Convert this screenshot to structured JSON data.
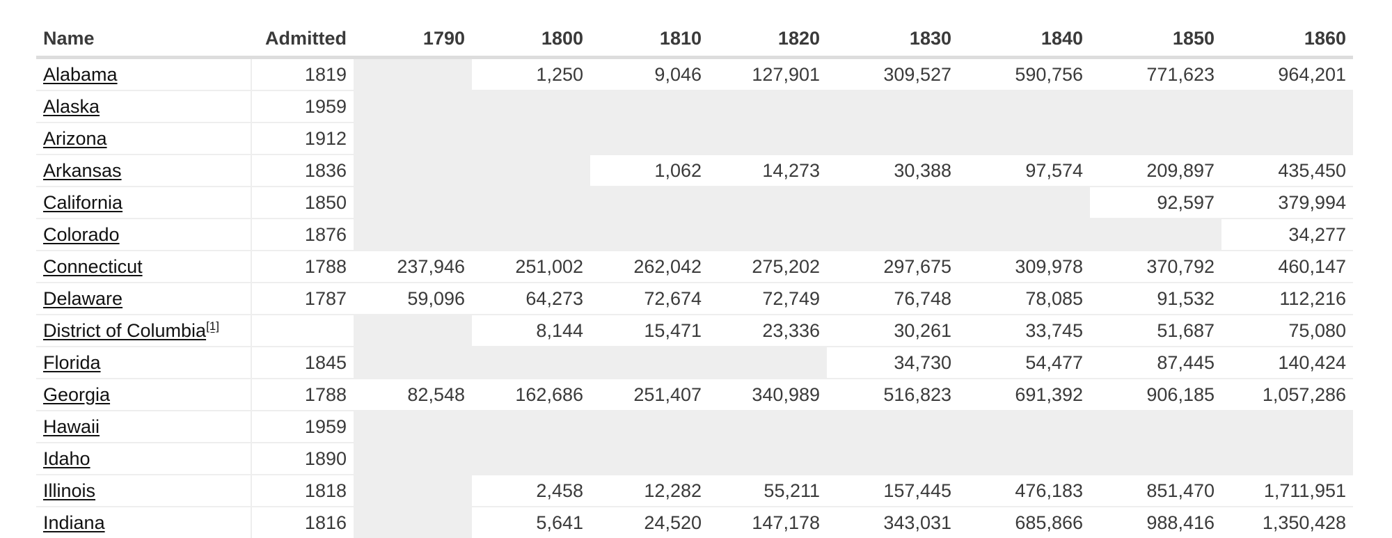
{
  "table": {
    "headers": [
      "Name",
      "Admitted",
      "1790",
      "1800",
      "1810",
      "1820",
      "1830",
      "1840",
      "1850",
      "1860"
    ],
    "rows": [
      {
        "name": "Alabama",
        "note": "",
        "admitted": "1819",
        "values": [
          "",
          "1,250",
          "9,046",
          "127,901",
          "309,527",
          "590,756",
          "771,623",
          "964,201"
        ]
      },
      {
        "name": "Alaska",
        "note": "",
        "admitted": "1959",
        "values": [
          "",
          "",
          "",
          "",
          "",
          "",
          "",
          ""
        ]
      },
      {
        "name": "Arizona",
        "note": "",
        "admitted": "1912",
        "values": [
          "",
          "",
          "",
          "",
          "",
          "",
          "",
          ""
        ]
      },
      {
        "name": "Arkansas",
        "note": "",
        "admitted": "1836",
        "values": [
          "",
          "",
          "1,062",
          "14,273",
          "30,388",
          "97,574",
          "209,897",
          "435,450"
        ]
      },
      {
        "name": "California",
        "note": "",
        "admitted": "1850",
        "values": [
          "",
          "",
          "",
          "",
          "",
          "",
          "92,597",
          "379,994"
        ]
      },
      {
        "name": "Colorado",
        "note": "",
        "admitted": "1876",
        "values": [
          "",
          "",
          "",
          "",
          "",
          "",
          "",
          "34,277"
        ]
      },
      {
        "name": "Connecticut",
        "note": "",
        "admitted": "1788",
        "values": [
          "237,946",
          "251,002",
          "262,042",
          "275,202",
          "297,675",
          "309,978",
          "370,792",
          "460,147"
        ]
      },
      {
        "name": "Delaware",
        "note": "",
        "admitted": "1787",
        "values": [
          "59,096",
          "64,273",
          "72,674",
          "72,749",
          "76,748",
          "78,085",
          "91,532",
          "112,216"
        ]
      },
      {
        "name": "District of Columbia",
        "note": "[1]",
        "admitted": "",
        "values": [
          "",
          "8,144",
          "15,471",
          "23,336",
          "30,261",
          "33,745",
          "51,687",
          "75,080"
        ]
      },
      {
        "name": "Florida",
        "note": "",
        "admitted": "1845",
        "values": [
          "",
          "",
          "",
          "",
          "34,730",
          "54,477",
          "87,445",
          "140,424"
        ]
      },
      {
        "name": "Georgia",
        "note": "",
        "admitted": "1788",
        "values": [
          "82,548",
          "162,686",
          "251,407",
          "340,989",
          "516,823",
          "691,392",
          "906,185",
          "1,057,286"
        ]
      },
      {
        "name": "Hawaii",
        "note": "",
        "admitted": "1959",
        "values": [
          "",
          "",
          "",
          "",
          "",
          "",
          "",
          ""
        ]
      },
      {
        "name": "Idaho",
        "note": "",
        "admitted": "1890",
        "values": [
          "",
          "",
          "",
          "",
          "",
          "",
          "",
          ""
        ]
      },
      {
        "name": "Illinois",
        "note": "",
        "admitted": "1818",
        "values": [
          "",
          "2,458",
          "12,282",
          "55,211",
          "157,445",
          "476,183",
          "851,470",
          "1,711,951"
        ]
      },
      {
        "name": "Indiana",
        "note": "",
        "admitted": "1816",
        "values": [
          "",
          "5,641",
          "24,520",
          "147,178",
          "343,031",
          "685,866",
          "988,416",
          "1,350,428"
        ]
      }
    ]
  },
  "colors": {
    "empty_cell": "#eeeeee",
    "header_border": "#dddddd",
    "link": "#111111"
  }
}
